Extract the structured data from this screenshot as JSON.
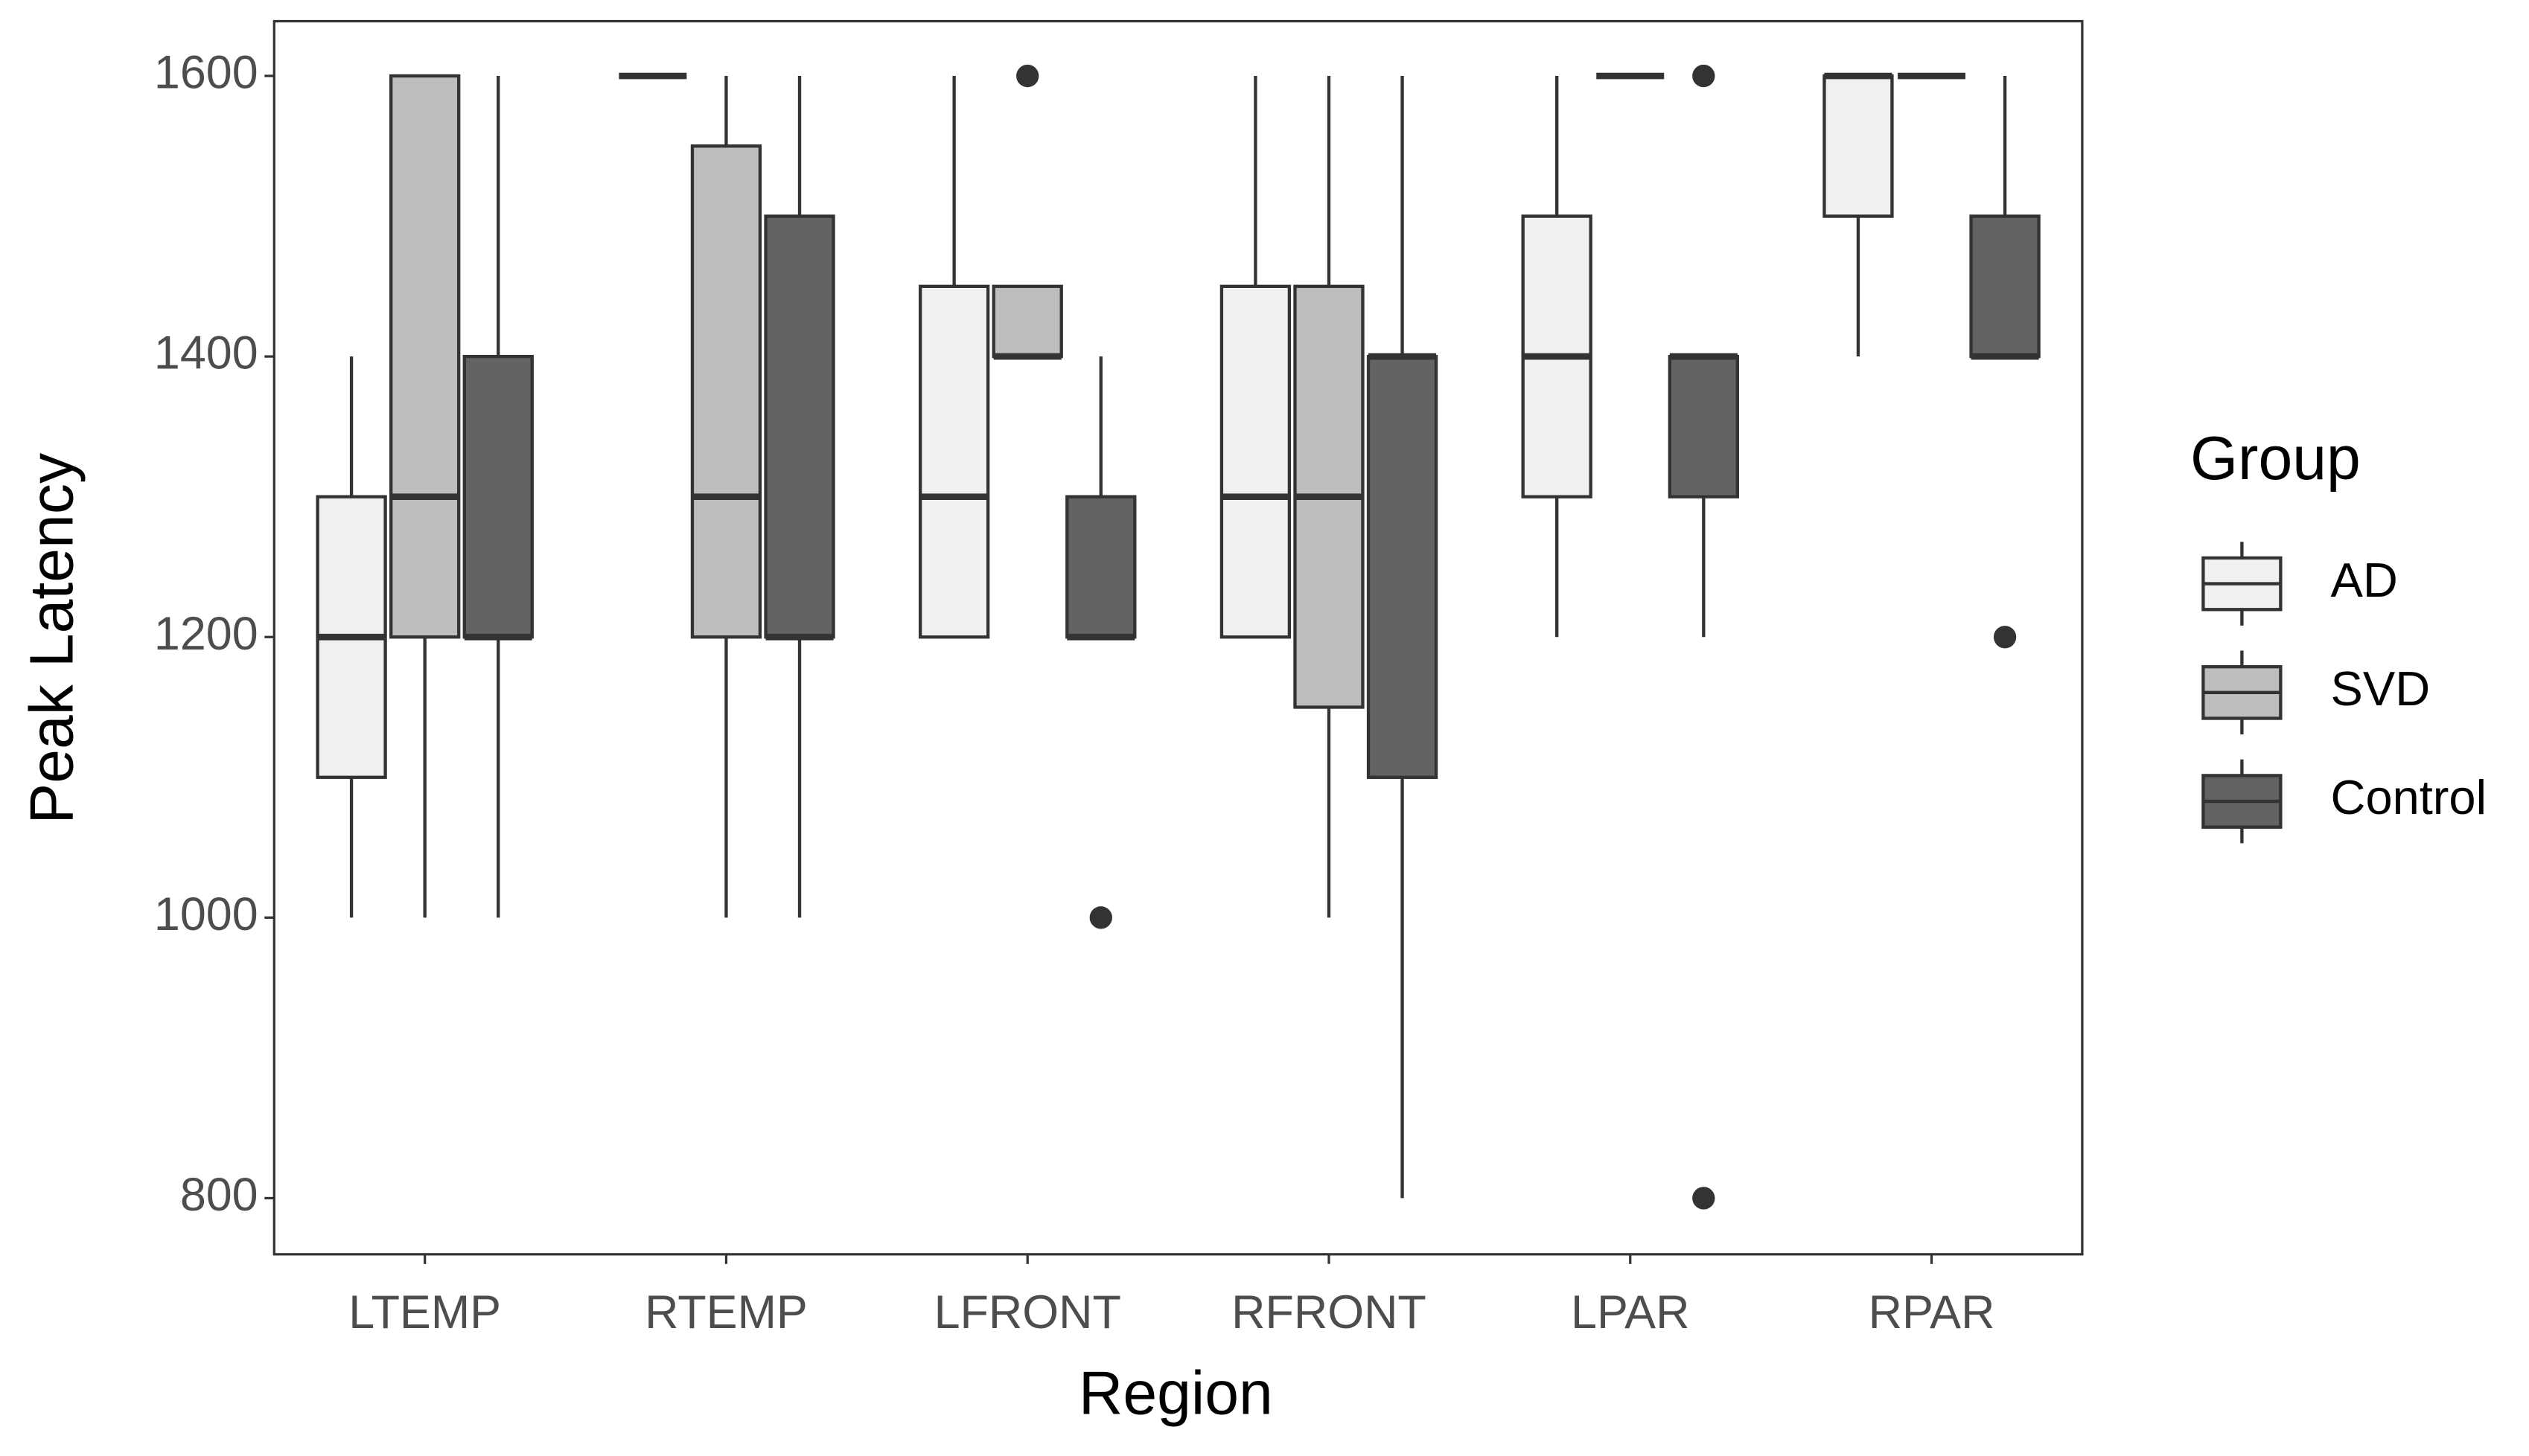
{
  "chart_data": {
    "type": "box",
    "x_label": "Region",
    "y_label": "Peak Latency",
    "categories": [
      "LTEMP",
      "RTEMP",
      "LFRONT",
      "RFRONT",
      "LPAR",
      "RPAR"
    ],
    "ylim": [
      760,
      1639
    ],
    "yticks": [
      800,
      1000,
      1200,
      1400,
      1600
    ],
    "grid": false,
    "legend_title": "Group",
    "legend_position": "right",
    "series": [
      {
        "name": "AD",
        "color": "#f0f0f0",
        "boxes": [
          {
            "min": 1000,
            "q1": 1100,
            "median": 1200,
            "q3": 1300,
            "max": 1400,
            "outliers": []
          },
          {
            "min": 1600,
            "q1": 1600,
            "median": 1600,
            "q3": 1600,
            "max": 1600,
            "outliers": []
          },
          {
            "min": 1200,
            "q1": 1200,
            "median": 1300,
            "q3": 1450,
            "max": 1600,
            "outliers": []
          },
          {
            "min": 1200,
            "q1": 1200,
            "median": 1300,
            "q3": 1450,
            "max": 1600,
            "outliers": []
          },
          {
            "min": 1200,
            "q1": 1300,
            "median": 1400,
            "q3": 1500,
            "max": 1600,
            "outliers": []
          },
          {
            "min": 1400,
            "q1": 1500,
            "median": 1600,
            "q3": 1600,
            "max": 1600,
            "outliers": []
          }
        ]
      },
      {
        "name": "SVD",
        "color": "#bdbdbd",
        "boxes": [
          {
            "min": 1000,
            "q1": 1200,
            "median": 1300,
            "q3": 1600,
            "max": 1600,
            "outliers": []
          },
          {
            "min": 1000,
            "q1": 1200,
            "median": 1300,
            "q3": 1550,
            "max": 1600,
            "outliers": []
          },
          {
            "min": 1400,
            "q1": 1400,
            "median": 1400,
            "q3": 1450,
            "max": 1450,
            "outliers": [
              1600
            ]
          },
          {
            "min": 1000,
            "q1": 1150,
            "median": 1300,
            "q3": 1450,
            "max": 1600,
            "outliers": []
          },
          {
            "min": 1600,
            "q1": 1600,
            "median": 1600,
            "q3": 1600,
            "max": 1600,
            "outliers": []
          },
          {
            "min": 1600,
            "q1": 1600,
            "median": 1600,
            "q3": 1600,
            "max": 1600,
            "outliers": []
          }
        ]
      },
      {
        "name": "Control",
        "color": "#636363",
        "boxes": [
          {
            "min": 1000,
            "q1": 1200,
            "median": 1200,
            "q3": 1400,
            "max": 1600,
            "outliers": []
          },
          {
            "min": 1000,
            "q1": 1200,
            "median": 1200,
            "q3": 1500,
            "max": 1600,
            "outliers": []
          },
          {
            "min": 1200,
            "q1": 1200,
            "median": 1200,
            "q3": 1300,
            "max": 1400,
            "outliers": [
              1000
            ]
          },
          {
            "min": 800,
            "q1": 1100,
            "median": 1400,
            "q3": 1400,
            "max": 1600,
            "outliers": []
          },
          {
            "min": 1200,
            "q1": 1300,
            "median": 1400,
            "q3": 1400,
            "max": 1400,
            "outliers": [
              1600,
              800
            ]
          },
          {
            "min": 1400,
            "q1": 1400,
            "median": 1400,
            "q3": 1500,
            "max": 1600,
            "outliers": [
              1200
            ]
          }
        ]
      }
    ]
  }
}
